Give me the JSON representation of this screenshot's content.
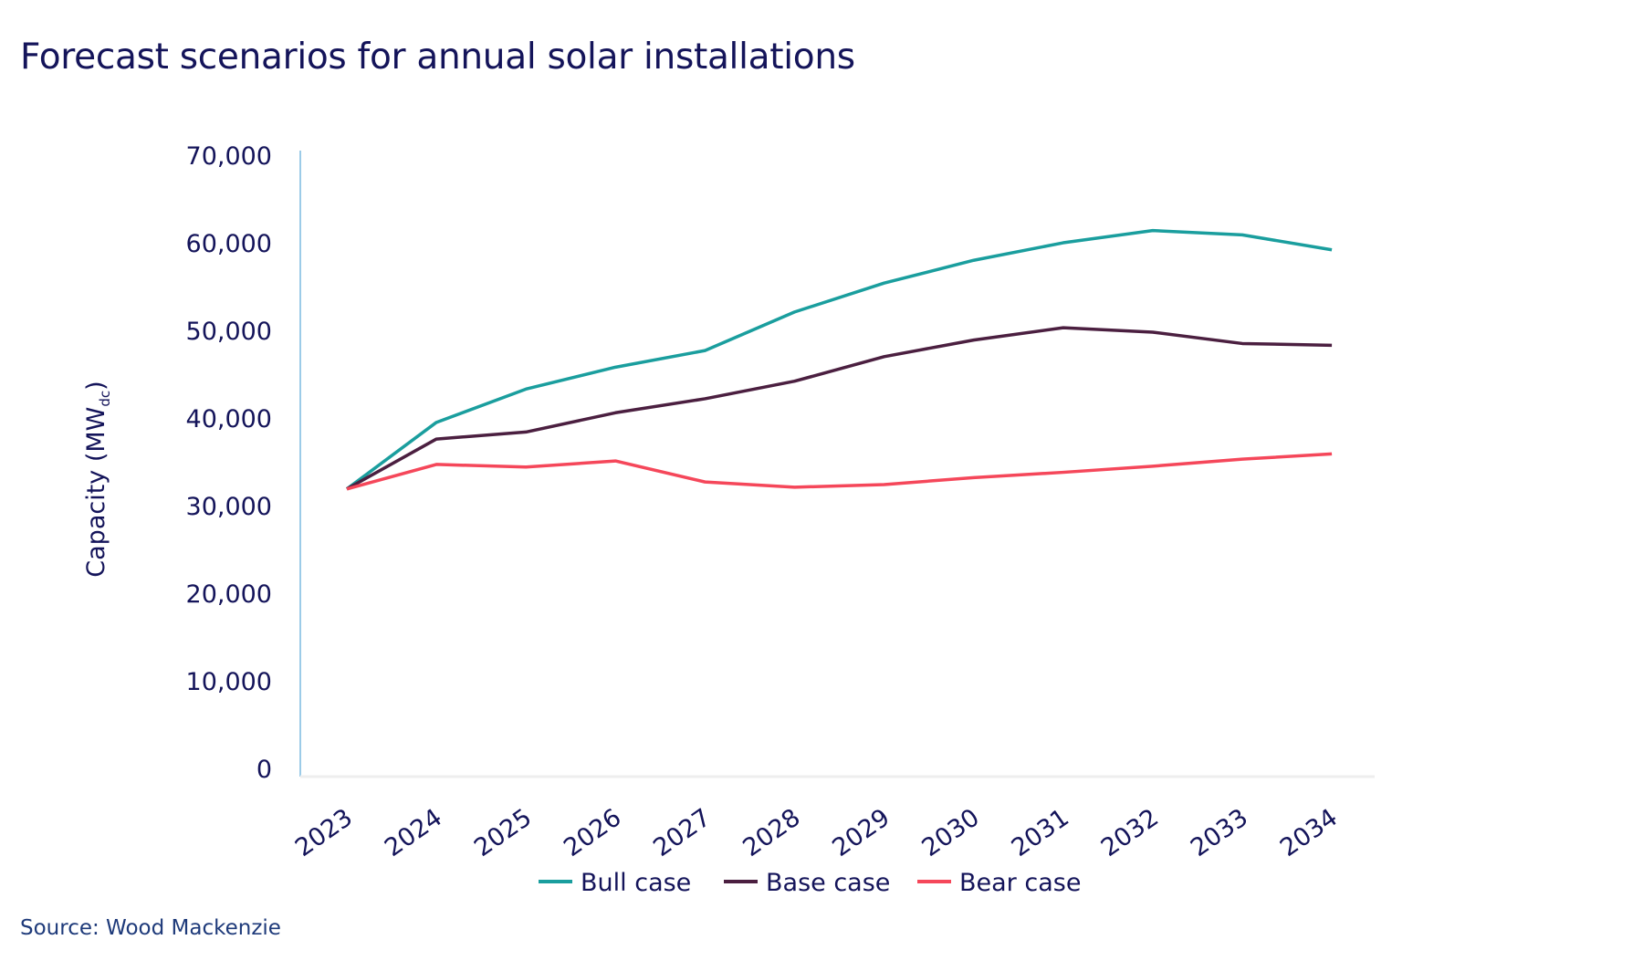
{
  "chart_data": {
    "type": "line",
    "title": "Forecast scenarios for annual solar installations",
    "xlabel": "",
    "ylabel": "Capacity (MW",
    "ylabel_sub": "dc",
    "ylabel_close": ")",
    "ylim": [
      0,
      70000
    ],
    "yticks": [
      0,
      10000,
      20000,
      30000,
      40000,
      50000,
      60000,
      70000
    ],
    "ytick_labels": [
      "0",
      "10,000",
      "20,000",
      "30,000",
      "40,000",
      "50,000",
      "60,000",
      "70,000"
    ],
    "categories": [
      "2023",
      "2024",
      "2025",
      "2026",
      "2027",
      "2028",
      "2029",
      "2030",
      "2031",
      "2032",
      "2033",
      "2034"
    ],
    "grid": false,
    "legend_position": "bottom",
    "series": [
      {
        "name": "Bull case",
        "color": "#1a9e9e",
        "values": [
          32000,
          39600,
          43400,
          45900,
          47800,
          52200,
          55500,
          58100,
          60100,
          61500,
          61000,
          59300
        ]
      },
      {
        "name": "Base case",
        "color": "#4b1f40",
        "values": [
          32000,
          37700,
          38500,
          40700,
          42300,
          44300,
          47100,
          49000,
          50400,
          49900,
          48600,
          48400
        ]
      },
      {
        "name": "Bear case",
        "color": "#f5475a",
        "values": [
          32000,
          34800,
          34500,
          35200,
          32800,
          32200,
          32500,
          33300,
          33900,
          34600,
          35400,
          36000
        ]
      }
    ]
  },
  "source": "Source: Wood Mackenzie"
}
